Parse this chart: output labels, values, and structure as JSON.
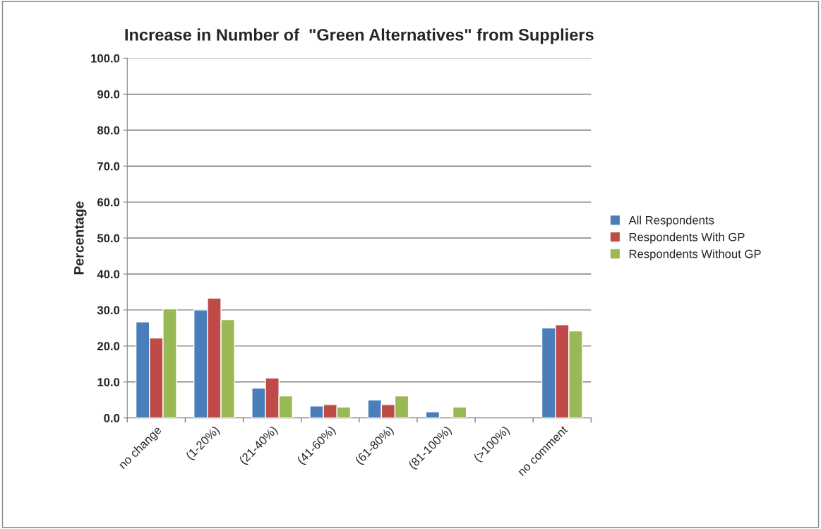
{
  "chart_data": {
    "type": "bar",
    "title": "Increase in Number of  \"Green Alternatives\" from Suppliers",
    "ylabel": "Percentage",
    "categories": [
      "no change",
      "(1-20%)",
      "(21-40%)",
      "(41-60%)",
      "(61-80%)",
      "(81-100%)",
      "(>100%)",
      "no comment"
    ],
    "series": [
      {
        "name": "All Respondents",
        "color": "#4a7ebb",
        "values": [
          26.7,
          30.0,
          8.3,
          3.3,
          5.0,
          1.7,
          null,
          25.0
        ]
      },
      {
        "name": "Respondents With GP",
        "color": "#be4b48",
        "values": [
          22.2,
          33.3,
          11.1,
          3.7,
          3.7,
          null,
          null,
          25.9
        ]
      },
      {
        "name": "Respondents Without GP",
        "color": "#98b954",
        "values": [
          30.3,
          27.3,
          6.1,
          3.0,
          6.1,
          3.0,
          null,
          24.2
        ]
      }
    ],
    "ylim": [
      0,
      100
    ],
    "yticks": [
      {
        "value": 0,
        "label": "0.0"
      },
      {
        "value": 10,
        "label": "10.0"
      },
      {
        "value": 20,
        "label": "20.0"
      },
      {
        "value": 30,
        "label": "30.0"
      },
      {
        "value": 40,
        "label": "40.0"
      },
      {
        "value": 50,
        "label": "50.0"
      },
      {
        "value": 60,
        "label": "60.0"
      },
      {
        "value": 70,
        "label": "70.0"
      },
      {
        "value": 80,
        "label": "80.0"
      },
      {
        "value": 90,
        "label": "90.0"
      },
      {
        "value": 100,
        "label": "100.0"
      }
    ],
    "grid": "y",
    "legend": "right"
  }
}
